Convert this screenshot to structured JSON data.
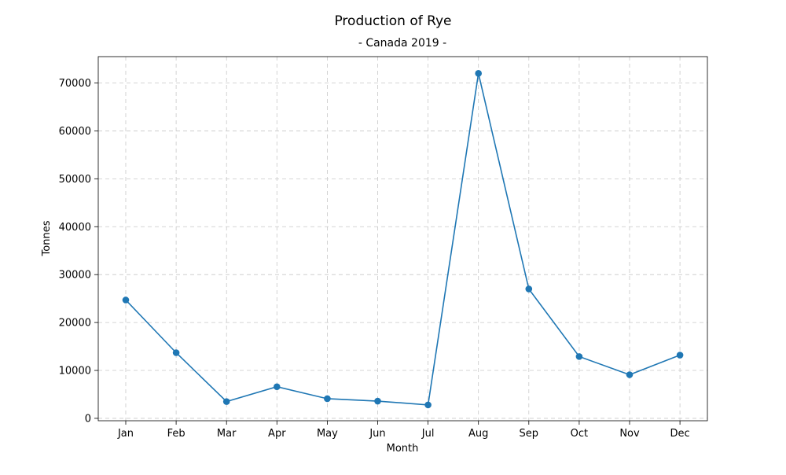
{
  "chart_data": {
    "type": "line",
    "title": "Production of Rye",
    "subtitle": "- Canada 2019 -",
    "xlabel": "Month",
    "ylabel": "Tonnes",
    "categories": [
      "Jan",
      "Feb",
      "Mar",
      "Apr",
      "May",
      "Jun",
      "Jul",
      "Aug",
      "Sep",
      "Oct",
      "Nov",
      "Dec"
    ],
    "series": [
      {
        "values": [
          24700,
          13700,
          3500,
          6600,
          4100,
          3600,
          2800,
          72000,
          27000,
          12900,
          9100,
          13200
        ],
        "color": "#1f77b4"
      }
    ],
    "ylim": [
      -500,
      75500
    ],
    "yticks": [
      0,
      10000,
      20000,
      30000,
      40000,
      50000,
      60000,
      70000
    ],
    "grid": true,
    "markers": true
  }
}
